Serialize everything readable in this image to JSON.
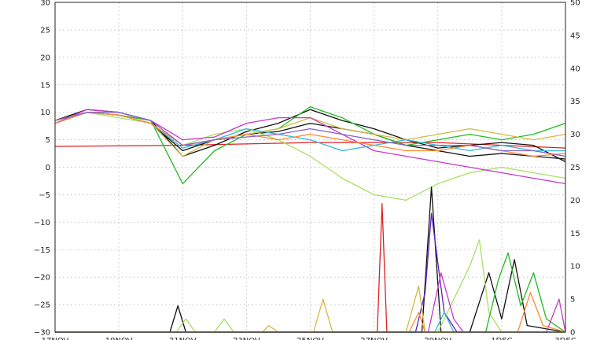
{
  "chart_data": {
    "type": "line",
    "title": "",
    "xlabel": "",
    "ylabel": "",
    "grid": true,
    "x_range_days": [
      0,
      16
    ],
    "y_left": {
      "range": [
        -30,
        30
      ],
      "ticks": [
        30,
        25,
        20,
        15,
        10,
        5,
        0,
        -5,
        -10,
        -15,
        -20,
        -25,
        -30
      ]
    },
    "y_right": {
      "range": [
        0,
        50
      ],
      "ticks": [
        50,
        45,
        40,
        35,
        30,
        25,
        20,
        15,
        10,
        5,
        0
      ]
    },
    "x_ticks": [
      {
        "day": 0,
        "label": "17NOV"
      },
      {
        "day": 2,
        "label": "19NOV"
      },
      {
        "day": 4,
        "label": "21NOV"
      },
      {
        "day": 6,
        "label": "23NOV"
      },
      {
        "day": 8,
        "label": "25NOV"
      },
      {
        "day": 10,
        "label": "27NOV"
      },
      {
        "day": 12,
        "label": "29NOV"
      },
      {
        "day": 14,
        "label": "1DEC"
      },
      {
        "day": 16,
        "label": "3DEC"
      }
    ],
    "series": [
      {
        "axis": "left",
        "color": "#e02020",
        "points": [
          [
            0,
            3.8
          ],
          [
            4,
            4
          ],
          [
            8,
            4.5
          ],
          [
            12,
            4.5
          ],
          [
            16,
            3.5
          ]
        ]
      },
      {
        "axis": "left",
        "color": "#111111",
        "points": [
          [
            0,
            8
          ],
          [
            1,
            10
          ],
          [
            2,
            9.5
          ],
          [
            3,
            8
          ],
          [
            4,
            3
          ],
          [
            5,
            5
          ],
          [
            6,
            6
          ],
          [
            7,
            6.5
          ],
          [
            8,
            8
          ],
          [
            9,
            7
          ],
          [
            10,
            6
          ],
          [
            11,
            4
          ],
          [
            12,
            3
          ],
          [
            13,
            2
          ],
          [
            14,
            2.5
          ],
          [
            15,
            2
          ],
          [
            16,
            1.5
          ]
        ]
      },
      {
        "axis": "left",
        "color": "#111111",
        "points": [
          [
            0,
            8.5
          ],
          [
            1,
            10.5
          ],
          [
            2,
            10
          ],
          [
            3,
            8.5
          ],
          [
            4,
            2
          ],
          [
            5,
            4
          ],
          [
            6,
            6.5
          ],
          [
            7,
            8
          ],
          [
            8,
            10.5
          ],
          [
            9,
            8.5
          ],
          [
            10,
            7
          ],
          [
            11,
            5
          ],
          [
            12,
            3.5
          ],
          [
            13,
            4
          ],
          [
            14,
            4.5
          ],
          [
            15,
            4
          ],
          [
            16,
            1
          ]
        ]
      },
      {
        "axis": "left",
        "color": "#22bb22",
        "points": [
          [
            0,
            8
          ],
          [
            1,
            10
          ],
          [
            2,
            9.5
          ],
          [
            3,
            8.5
          ],
          [
            4,
            -3
          ],
          [
            5,
            3
          ],
          [
            6,
            6
          ],
          [
            7,
            7
          ],
          [
            8,
            11
          ],
          [
            9,
            9
          ],
          [
            10,
            6
          ],
          [
            11,
            4
          ],
          [
            12,
            5
          ],
          [
            13,
            6
          ],
          [
            14,
            5
          ],
          [
            15,
            6
          ],
          [
            16,
            8
          ]
        ]
      },
      {
        "axis": "left",
        "color": "#a8e060",
        "points": [
          [
            0,
            8
          ],
          [
            1,
            10
          ],
          [
            2,
            9
          ],
          [
            3,
            8
          ],
          [
            4,
            4
          ],
          [
            5,
            6
          ],
          [
            6,
            7
          ],
          [
            7,
            5
          ],
          [
            8,
            2
          ],
          [
            9,
            -2
          ],
          [
            10,
            -5
          ],
          [
            11,
            -6
          ],
          [
            12,
            -3
          ],
          [
            13,
            -1
          ],
          [
            14,
            0
          ],
          [
            15,
            -1
          ],
          [
            16,
            -2
          ]
        ]
      },
      {
        "axis": "left",
        "color": "#d4b840",
        "points": [
          [
            0,
            8.5
          ],
          [
            1,
            10
          ],
          [
            2,
            9.5
          ],
          [
            3,
            8
          ],
          [
            4,
            2
          ],
          [
            5,
            5
          ],
          [
            6,
            6
          ],
          [
            7,
            7
          ],
          [
            8,
            9
          ],
          [
            9,
            7
          ],
          [
            10,
            6
          ],
          [
            11,
            5
          ],
          [
            12,
            6
          ],
          [
            13,
            7
          ],
          [
            14,
            6
          ],
          [
            15,
            5
          ],
          [
            16,
            6
          ]
        ]
      },
      {
        "axis": "left",
        "color": "#c838c8",
        "points": [
          [
            0,
            8
          ],
          [
            1,
            10.5
          ],
          [
            2,
            10
          ],
          [
            3,
            8.5
          ],
          [
            4,
            5
          ],
          [
            5,
            5.5
          ],
          [
            6,
            8
          ],
          [
            7,
            9
          ],
          [
            8,
            9
          ],
          [
            9,
            6
          ],
          [
            10,
            3
          ],
          [
            11,
            2
          ],
          [
            12,
            1
          ],
          [
            13,
            0
          ],
          [
            14,
            -1
          ],
          [
            15,
            -2
          ],
          [
            16,
            -3
          ]
        ]
      },
      {
        "axis": "left",
        "color": "#30b8e0",
        "points": [
          [
            0,
            8
          ],
          [
            1,
            10
          ],
          [
            2,
            9.5
          ],
          [
            3,
            8
          ],
          [
            4,
            3.5
          ],
          [
            5,
            5
          ],
          [
            6,
            7
          ],
          [
            7,
            6
          ],
          [
            8,
            5
          ],
          [
            9,
            3
          ],
          [
            10,
            4
          ],
          [
            11,
            5
          ],
          [
            12,
            4
          ],
          [
            13,
            3
          ],
          [
            14,
            4
          ],
          [
            15,
            3
          ],
          [
            16,
            3
          ]
        ]
      },
      {
        "axis": "left",
        "color": "#ff8a30",
        "points": [
          [
            0,
            8
          ],
          [
            1,
            10
          ],
          [
            2,
            9.5
          ],
          [
            3,
            8
          ],
          [
            4,
            4
          ],
          [
            5,
            5
          ],
          [
            6,
            6
          ],
          [
            7,
            5
          ],
          [
            8,
            6
          ],
          [
            9,
            5
          ],
          [
            10,
            4
          ],
          [
            11,
            3
          ],
          [
            12,
            3
          ],
          [
            13,
            4
          ],
          [
            14,
            3
          ],
          [
            15,
            2
          ],
          [
            16,
            2.5
          ]
        ]
      },
      {
        "axis": "left",
        "color": "#8a60c8",
        "points": [
          [
            0,
            8.5
          ],
          [
            1,
            10
          ],
          [
            2,
            10
          ],
          [
            3,
            8.5
          ],
          [
            4,
            4
          ],
          [
            5,
            5
          ],
          [
            6,
            5.5
          ],
          [
            7,
            6
          ],
          [
            8,
            7
          ],
          [
            9,
            6
          ],
          [
            10,
            5
          ],
          [
            11,
            4
          ],
          [
            12,
            4
          ],
          [
            13,
            4
          ],
          [
            14,
            3
          ],
          [
            15,
            3
          ],
          [
            16,
            2
          ]
        ]
      },
      {
        "axis": "right",
        "color": "#e02020",
        "points": [
          [
            0,
            0
          ],
          [
            8,
            0
          ],
          [
            10.1,
            0
          ],
          [
            10.25,
            19.5
          ],
          [
            10.4,
            0
          ],
          [
            16,
            0
          ]
        ]
      },
      {
        "axis": "right",
        "color": "#111111",
        "points": [
          [
            0,
            0
          ],
          [
            3.6,
            0
          ],
          [
            3.85,
            4
          ],
          [
            4.1,
            0
          ],
          [
            11,
            0
          ],
          [
            11.5,
            0
          ],
          [
            11.8,
            22
          ],
          [
            12.1,
            0
          ],
          [
            13,
            0
          ],
          [
            13.6,
            9
          ],
          [
            14,
            2
          ],
          [
            14.4,
            11
          ],
          [
            14.8,
            1
          ],
          [
            16,
            0
          ]
        ]
      },
      {
        "axis": "right",
        "color": "#6020c0",
        "points": [
          [
            0,
            0
          ],
          [
            11.3,
            0
          ],
          [
            11.6,
            6
          ],
          [
            11.8,
            18
          ],
          [
            12.2,
            3
          ],
          [
            12.6,
            0
          ],
          [
            16,
            0
          ]
        ]
      },
      {
        "axis": "right",
        "color": "#a8e060",
        "points": [
          [
            0,
            0
          ],
          [
            3.8,
            0
          ],
          [
            4.1,
            2
          ],
          [
            4.4,
            0
          ],
          [
            5,
            0
          ],
          [
            5.3,
            2
          ],
          [
            5.6,
            0
          ],
          [
            12,
            0
          ],
          [
            13,
            10
          ],
          [
            13.3,
            14
          ],
          [
            13.6,
            3
          ],
          [
            14,
            0
          ],
          [
            16,
            0
          ]
        ]
      },
      {
        "axis": "right",
        "color": "#22bb22",
        "points": [
          [
            0,
            0
          ],
          [
            13.5,
            0
          ],
          [
            13.9,
            8
          ],
          [
            14.2,
            12
          ],
          [
            14.6,
            4
          ],
          [
            15,
            9
          ],
          [
            15.4,
            2
          ],
          [
            16,
            0
          ]
        ]
      },
      {
        "axis": "right",
        "color": "#d4b840",
        "points": [
          [
            0,
            0
          ],
          [
            6.5,
            0
          ],
          [
            6.7,
            1
          ],
          [
            7,
            0
          ],
          [
            8.1,
            0
          ],
          [
            8.4,
            5
          ],
          [
            8.7,
            0
          ],
          [
            11,
            0
          ],
          [
            11.4,
            7
          ],
          [
            11.6,
            0
          ],
          [
            16,
            0
          ]
        ]
      },
      {
        "axis": "right",
        "color": "#c838c8",
        "points": [
          [
            0,
            0
          ],
          [
            11.7,
            0
          ],
          [
            12.1,
            9
          ],
          [
            12.5,
            2
          ],
          [
            12.8,
            0
          ],
          [
            15.4,
            0
          ],
          [
            15.8,
            5
          ],
          [
            16,
            0
          ]
        ]
      },
      {
        "axis": "right",
        "color": "#ff8a30",
        "points": [
          [
            0,
            0
          ],
          [
            11.1,
            0
          ],
          [
            11.4,
            3
          ],
          [
            11.6,
            0
          ],
          [
            14.5,
            0
          ],
          [
            14.9,
            6
          ],
          [
            15.3,
            1
          ],
          [
            16,
            0
          ]
        ]
      },
      {
        "axis": "right",
        "color": "#30b8e0",
        "points": [
          [
            0,
            0
          ],
          [
            11.9,
            0
          ],
          [
            12.2,
            3
          ],
          [
            12.5,
            0
          ],
          [
            16,
            0
          ]
        ]
      }
    ]
  }
}
